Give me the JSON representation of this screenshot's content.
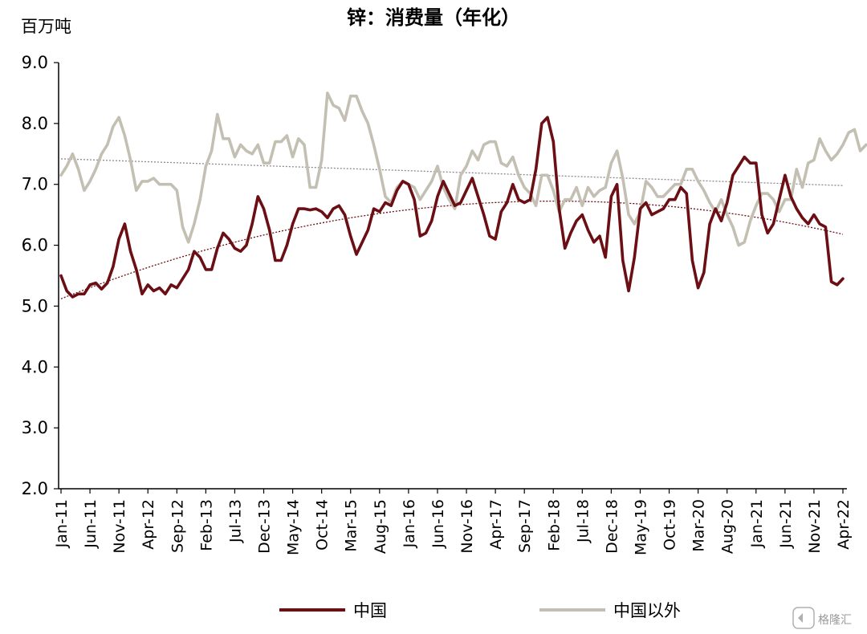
{
  "chart_data": {
    "type": "line",
    "title": "锌：消费量（年化）",
    "ylabel": "百万吨",
    "ylim": [
      2.0,
      9.0
    ],
    "yticks": [
      "9.0",
      "8.0",
      "7.0",
      "6.0",
      "5.0",
      "4.0",
      "3.0",
      "2.0"
    ],
    "x_ticks": [
      "Jan-11",
      "Jun-11",
      "Nov-11",
      "Apr-12",
      "Sep-12",
      "Feb-13",
      "Jul-13",
      "Dec-13",
      "May-14",
      "Oct-14",
      "Mar-15",
      "Aug-15",
      "Jan-16",
      "Jun-16",
      "Nov-16",
      "Apr-17",
      "Sep-17",
      "Feb-18",
      "Jul-18",
      "Dec-18",
      "May-19",
      "Oct-19",
      "Mar-20",
      "Aug-20",
      "Jan-21",
      "Jun-21",
      "Nov-21",
      "Apr-22"
    ],
    "x_start": "Jan-11",
    "x_end": "Apr-22",
    "grid": false,
    "legend_position": "bottom",
    "series": [
      {
        "name": "中国",
        "color": "#6b0f14",
        "values": [
          5.5,
          5.25,
          5.15,
          5.2,
          5.2,
          5.35,
          5.38,
          5.28,
          5.38,
          5.65,
          6.1,
          6.35,
          5.9,
          5.6,
          5.2,
          5.35,
          5.25,
          5.3,
          5.2,
          5.35,
          5.3,
          5.45,
          5.6,
          5.9,
          5.8,
          5.6,
          5.6,
          5.95,
          6.2,
          6.1,
          5.95,
          5.9,
          6.0,
          6.35,
          6.8,
          6.6,
          6.25,
          5.75,
          5.75,
          6.0,
          6.35,
          6.6,
          6.6,
          6.58,
          6.6,
          6.55,
          6.45,
          6.6,
          6.65,
          6.5,
          6.15,
          5.85,
          6.05,
          6.25,
          6.6,
          6.55,
          6.7,
          6.65,
          6.9,
          7.05,
          7.0,
          6.75,
          6.15,
          6.2,
          6.4,
          6.8,
          7.05,
          6.85,
          6.65,
          6.7,
          6.9,
          7.1,
          6.8,
          6.5,
          6.15,
          6.1,
          6.55,
          6.7,
          7.0,
          6.75,
          6.7,
          6.75,
          7.25,
          8.0,
          8.1,
          7.7,
          6.6,
          5.95,
          6.2,
          6.4,
          6.5,
          6.25,
          6.05,
          6.15,
          5.8,
          6.8,
          7.0,
          5.75,
          5.25,
          5.8,
          6.6,
          6.7,
          6.5,
          6.55,
          6.6,
          6.75,
          6.75,
          6.95,
          6.85,
          5.75,
          5.3,
          5.55,
          6.35,
          6.6,
          6.4,
          6.7,
          7.15,
          7.3,
          7.45,
          7.35,
          7.35,
          6.5,
          6.2,
          6.35,
          6.75,
          7.15,
          6.8,
          6.6,
          6.45,
          6.35,
          6.5,
          6.35,
          6.3,
          5.4,
          5.35,
          5.45
        ]
      },
      {
        "name": "中国以外",
        "color": "#c3c0b3",
        "values": [
          7.15,
          7.3,
          7.5,
          7.25,
          6.9,
          7.05,
          7.25,
          7.5,
          7.65,
          7.95,
          8.1,
          7.8,
          7.4,
          6.9,
          7.05,
          7.05,
          7.1,
          7.0,
          7.0,
          7.0,
          6.9,
          6.3,
          6.05,
          6.35,
          6.75,
          7.3,
          7.55,
          8.15,
          7.75,
          7.75,
          7.45,
          7.65,
          7.55,
          7.5,
          7.65,
          7.35,
          7.35,
          7.7,
          7.7,
          7.8,
          7.45,
          7.75,
          7.65,
          6.95,
          6.95,
          7.4,
          8.5,
          8.3,
          8.25,
          8.05,
          8.45,
          8.45,
          8.2,
          8.0,
          7.65,
          7.25,
          6.8,
          6.7,
          6.95,
          7.05,
          7.0,
          6.95,
          6.75,
          6.9,
          7.05,
          7.3,
          6.95,
          6.75,
          6.6,
          7.15,
          7.3,
          7.55,
          7.4,
          7.65,
          7.7,
          7.7,
          7.35,
          7.3,
          7.45,
          7.15,
          6.95,
          6.85,
          6.65,
          7.15,
          7.15,
          6.9,
          6.55,
          6.75,
          6.75,
          6.95,
          6.65,
          6.95,
          6.8,
          6.9,
          6.95,
          7.35,
          7.55,
          7.1,
          6.5,
          6.35,
          6.55,
          7.05,
          6.95,
          6.8,
          6.8,
          6.9,
          7.0,
          7.0,
          7.25,
          7.25,
          7.05,
          6.9,
          6.7,
          6.55,
          6.75,
          6.5,
          6.3,
          6.0,
          6.05,
          6.4,
          6.65,
          6.85,
          6.85,
          6.75,
          6.55,
          6.75,
          6.75,
          7.25,
          6.95,
          7.35,
          7.4,
          7.75,
          7.55,
          7.4,
          7.5,
          7.65,
          7.85,
          7.9,
          7.55,
          7.65
        ]
      }
    ],
    "trendlines": [
      {
        "series": "中国以外",
        "style": "dotted",
        "color": "#8a8a8a",
        "start": 7.42,
        "end": 6.98
      },
      {
        "series": "中国",
        "style": "dotted",
        "color": "#6b0f14",
        "start": 5.12,
        "peak": 6.72,
        "end": 6.18
      }
    ],
    "watermark": "格隆汇"
  }
}
